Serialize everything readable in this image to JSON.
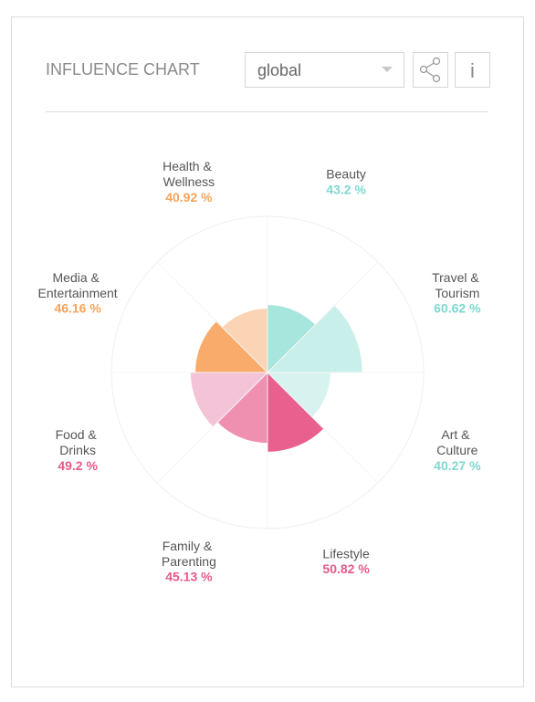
{
  "header": {
    "title": "INFLUENCE CHART",
    "dropdown": "global",
    "info_button": "i"
  },
  "chart_data": {
    "type": "polar",
    "categories": [
      "Beauty",
      "Travel & Tourism",
      "Art & Culture",
      "Lifestyle",
      "Family & Parenting",
      "Food & Drinks",
      "Media & Entertainment",
      "Health & Wellness"
    ],
    "values": [
      43.2,
      60.62,
      40.27,
      50.82,
      45.13,
      49.2,
      46.16,
      40.92
    ],
    "value_labels": [
      "43.2 %",
      "60.62 %",
      "40.27 %",
      "50.82 %",
      "45.13 %",
      "49.2 %",
      "46.16 %",
      "40.92 %"
    ],
    "colors": [
      "#a6e6dc",
      "#c8efea",
      "#d7f3ef",
      "#e9608f",
      "#ef90b1",
      "#f3c4d7",
      "#f9ab6b",
      "#fad4b5"
    ],
    "label_colors": [
      "#7fd8cf",
      "#7fd8cf",
      "#7fd8cf",
      "#e55a8a",
      "#e55a8a",
      "#e55a8a",
      "#f7a35c",
      "#f7a35c"
    ],
    "ylim": [
      0,
      100
    ],
    "grid": true
  }
}
